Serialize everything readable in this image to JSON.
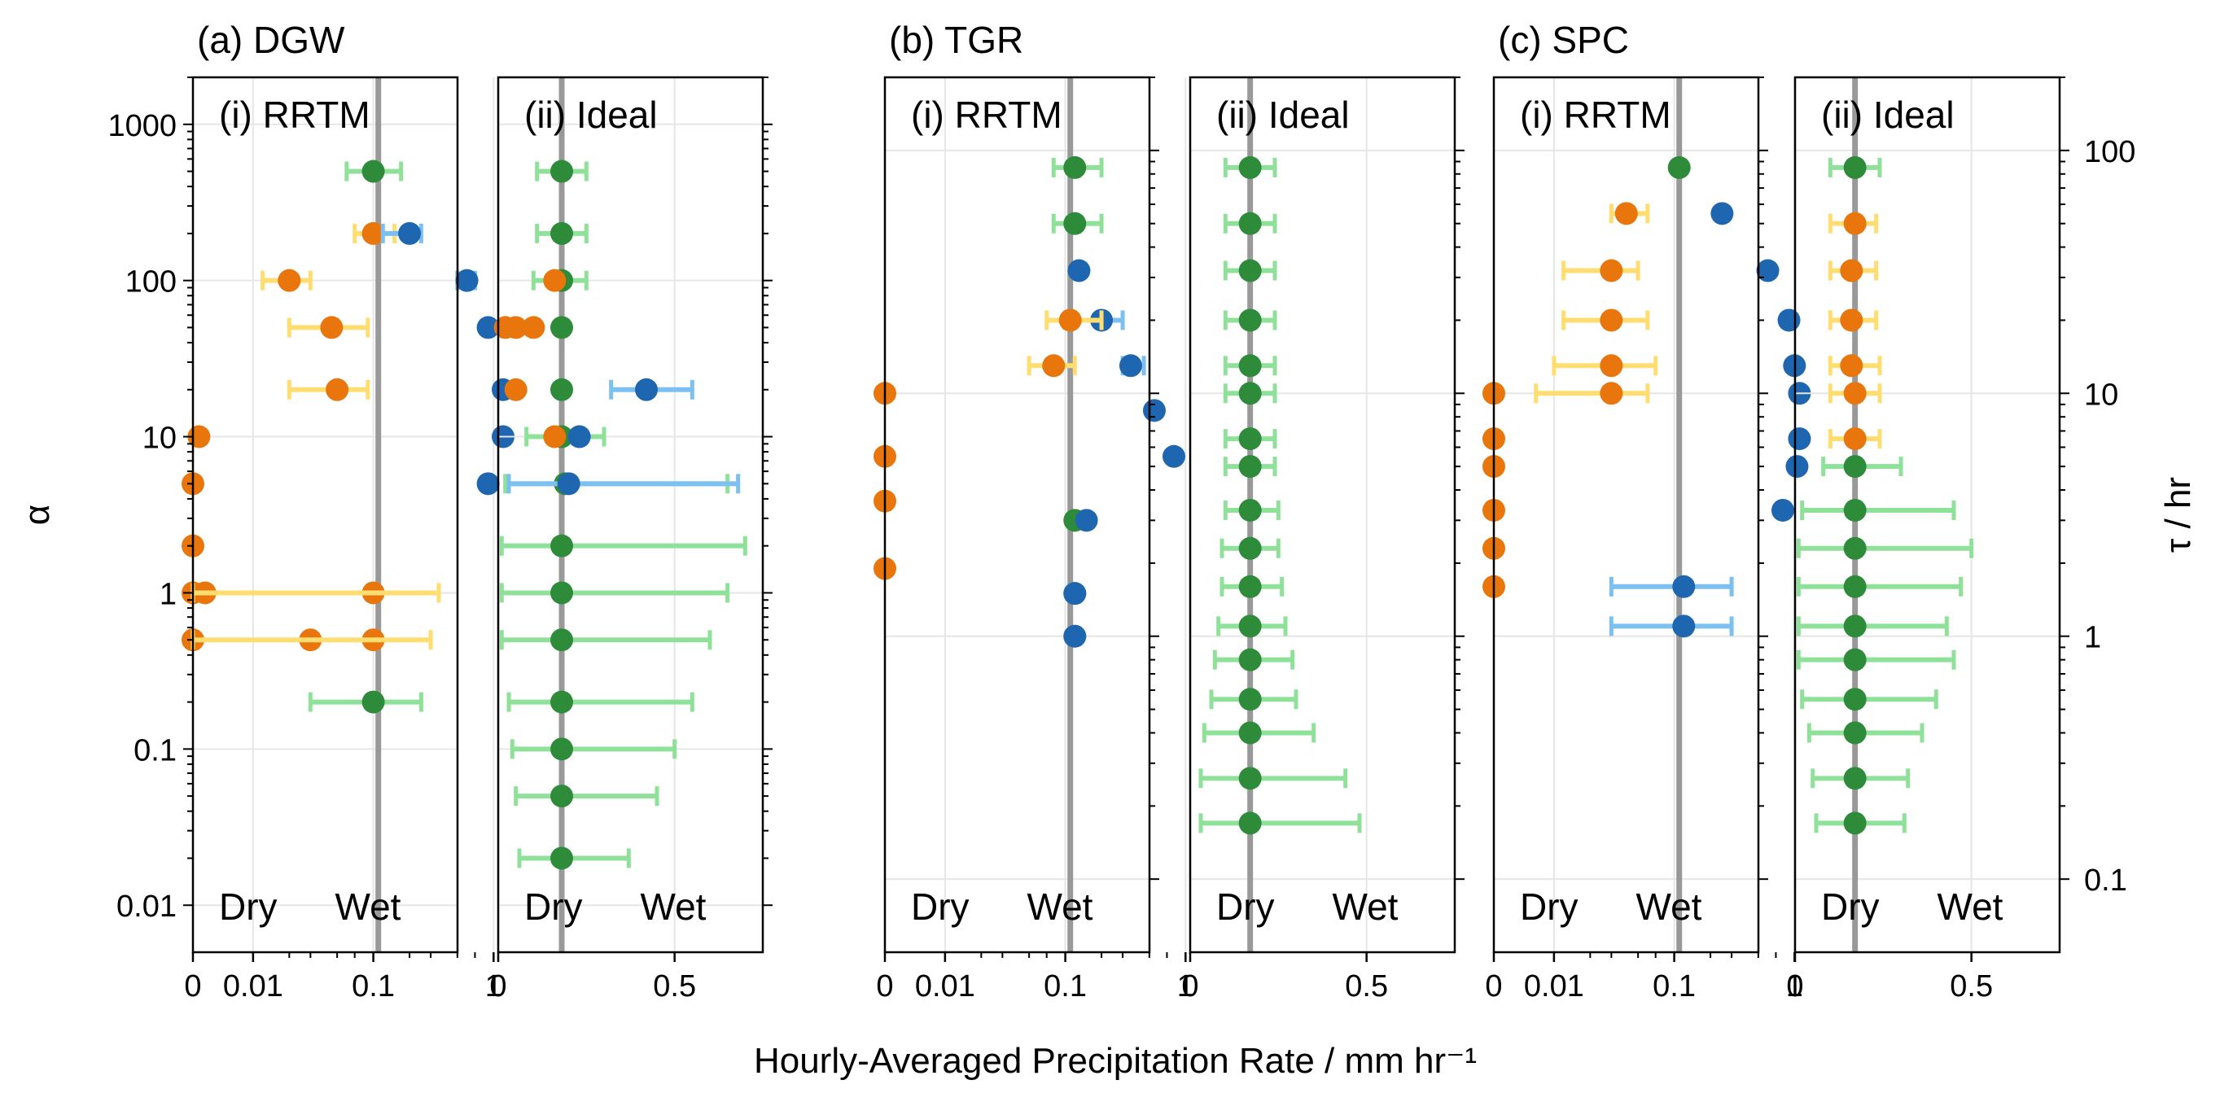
{
  "figure": {
    "xlabel": "Hourly-Averaged Precipitation Rate / mm hr⁻¹",
    "left_ylabel": "α",
    "right_ylabel": "τ / hr",
    "left_ytick_labels": [
      "1000",
      "100",
      "10",
      "1",
      "0.1",
      "0.01"
    ],
    "right_ytick_labels": [
      "100",
      "10",
      "1",
      "0.1"
    ],
    "dry_label": "Dry",
    "wet_label": "Wet",
    "colors": {
      "green": "#2e8b3a",
      "orange": "#e8760c",
      "blue": "#1f66b0",
      "light_green": "#8fe19a",
      "light_yellow": "#ffdd70",
      "light_blue": "#7cc0f2",
      "reference_line": "#999999",
      "grid": "#e6e6e6"
    }
  },
  "chart_data": [
    {
      "type": "scatter",
      "group_title": "(a) DGW",
      "title": "(i) RRTM",
      "x_scale": "symlog",
      "xticks": [
        "0",
        "0.01",
        "0.1",
        "1"
      ],
      "y_param": "alpha",
      "reference_x": 0.11,
      "series": [
        {
          "color": "orange",
          "points": [
            {
              "y": 200,
              "x": 0.1,
              "lo": 0.07,
              "hi": 0.15
            },
            {
              "y": 100,
              "x": 0.02,
              "lo": 0.012,
              "hi": 0.03
            },
            {
              "y": 50,
              "x": 0.045,
              "lo": 0.02,
              "hi": 0.09
            },
            {
              "y": 20,
              "x": 0.05,
              "lo": 0.02,
              "hi": 0.09
            },
            {
              "y": 10,
              "x": 0.001
            },
            {
              "y": 5,
              "x": 0
            },
            {
              "y": 2,
              "x": 0
            },
            {
              "y": 1,
              "x": 0.1
            },
            {
              "y": 1,
              "x": 0.002
            },
            {
              "y": 1,
              "x": 0
            },
            {
              "y": 0.5,
              "x": 0.1
            },
            {
              "y": 0.5,
              "x": 0.03
            },
            {
              "y": 0.5,
              "x": 0
            }
          ]
        },
        {
          "color": "blue",
          "points": [
            {
              "y": 200,
              "x": 0.2,
              "lo": 0.12,
              "hi": 0.25
            },
            {
              "y": 100,
              "x": 0.6,
              "lo": 0.5,
              "hi": 0.7
            },
            {
              "y": 50,
              "x": 0.9
            },
            {
              "y": 20,
              "x": 1.2
            },
            {
              "y": 10,
              "x": 1.2
            },
            {
              "y": 5,
              "x": 0.9
            }
          ]
        },
        {
          "color": "green",
          "points": [
            {
              "y": 500,
              "x": 0.1,
              "lo": 0.06,
              "hi": 0.17
            },
            {
              "y": 0.2,
              "x": 0.1,
              "lo": 0.03,
              "hi": 0.25
            }
          ]
        },
        {
          "color": "light_yellow",
          "points": [
            {
              "y": 1,
              "x": 0.1,
              "lo": 0.0,
              "hi": 0.35
            },
            {
              "y": 0.5,
              "x": 0.1,
              "lo": 0.0,
              "hi": 0.3
            }
          ]
        }
      ]
    },
    {
      "type": "scatter",
      "group_title": "",
      "title": "(ii) Ideal",
      "x_scale": "linear",
      "xticks": [
        "0",
        "0.5"
      ],
      "y_param": "alpha",
      "reference_x": 0.18,
      "series": [
        {
          "color": "green",
          "points": [
            {
              "y": 500,
              "x": 0.18,
              "lo": 0.11,
              "hi": 0.25
            },
            {
              "y": 200,
              "x": 0.18,
              "lo": 0.11,
              "hi": 0.25
            },
            {
              "y": 100,
              "x": 0.18,
              "lo": 0.1,
              "hi": 0.25
            },
            {
              "y": 50,
              "x": 0.18
            },
            {
              "y": 20,
              "x": 0.18
            },
            {
              "y": 10,
              "x": 0.18,
              "lo": 0.08,
              "hi": 0.3
            },
            {
              "y": 5,
              "x": 0.19,
              "lo": 0.02,
              "hi": 0.65
            },
            {
              "y": 2,
              "x": 0.18,
              "lo": 0.01,
              "hi": 0.7
            },
            {
              "y": 1,
              "x": 0.18,
              "lo": 0.01,
              "hi": 0.65
            },
            {
              "y": 0.5,
              "x": 0.18,
              "lo": 0.01,
              "hi": 0.6
            },
            {
              "y": 0.2,
              "x": 0.18,
              "lo": 0.03,
              "hi": 0.55
            },
            {
              "y": 0.1,
              "x": 0.18,
              "lo": 0.04,
              "hi": 0.5
            },
            {
              "y": 0.05,
              "x": 0.18,
              "lo": 0.05,
              "hi": 0.45
            },
            {
              "y": 0.02,
              "x": 0.18,
              "lo": 0.06,
              "hi": 0.37
            }
          ]
        },
        {
          "color": "orange",
          "points": [
            {
              "y": 100,
              "x": 0.16
            },
            {
              "y": 50,
              "x": 0.02
            },
            {
              "y": 50,
              "x": 0.05
            },
            {
              "y": 50,
              "x": 0.1
            },
            {
              "y": 20,
              "x": 0.05
            },
            {
              "y": 10,
              "x": 0.16
            }
          ]
        },
        {
          "color": "blue",
          "points": [
            {
              "y": 20,
              "x": 0.42,
              "lo": 0.32,
              "hi": 0.55
            },
            {
              "y": 10,
              "x": 0.23
            },
            {
              "y": 5,
              "x": 0.2,
              "lo": 0.03,
              "hi": 0.68
            }
          ]
        }
      ]
    },
    {
      "type": "scatter",
      "group_title": "(b) TGR",
      "title": "(i) RRTM",
      "x_scale": "symlog",
      "xticks": [
        "0",
        "0.01",
        "0.1",
        "1"
      ],
      "y_param": "tau",
      "reference_x": 0.11,
      "series": [
        {
          "color": "green",
          "points": [
            {
              "y": 85,
              "x": 0.12,
              "lo": 0.08,
              "hi": 0.2
            },
            {
              "y": 50,
              "x": 0.12,
              "lo": 0.08,
              "hi": 0.2
            },
            {
              "y": 3,
              "x": 0.12
            },
            {
              "y": 1.5,
              "x": 0.12
            },
            {
              "y": 1,
              "x": 0.12
            }
          ]
        },
        {
          "color": "blue",
          "points": [
            {
              "y": 32,
              "x": 0.13
            },
            {
              "y": 20,
              "x": 0.2,
              "lo": 0.1,
              "hi": 0.3
            },
            {
              "y": 13,
              "x": 0.35,
              "lo": 0.3,
              "hi": 0.45
            },
            {
              "y": 8.5,
              "x": 0.55
            },
            {
              "y": 5.5,
              "x": 0.8
            },
            {
              "y": 3,
              "x": 0.15
            },
            {
              "y": 1.5,
              "x": 0.12
            },
            {
              "y": 1,
              "x": 0.12
            }
          ]
        },
        {
          "color": "orange",
          "points": [
            {
              "y": 20,
              "x": 0.11,
              "lo": 0.07,
              "hi": 0.2
            },
            {
              "y": 13,
              "x": 0.08,
              "lo": 0.05,
              "hi": 0.12
            },
            {
              "y": 10,
              "x": 0
            },
            {
              "y": 5.5,
              "x": 0
            },
            {
              "y": 3.6,
              "x": 0
            },
            {
              "y": 1.9,
              "x": 0
            }
          ]
        }
      ]
    },
    {
      "type": "scatter",
      "group_title": "",
      "title": "(ii) Ideal",
      "x_scale": "linear",
      "xticks": [
        "0",
        "0.5"
      ],
      "y_param": "tau",
      "reference_x": 0.17,
      "series": [
        {
          "color": "green",
          "points": [
            {
              "y": 85,
              "x": 0.17,
              "lo": 0.1,
              "hi": 0.24
            },
            {
              "y": 50,
              "x": 0.17,
              "lo": 0.1,
              "hi": 0.24
            },
            {
              "y": 32,
              "x": 0.17,
              "lo": 0.1,
              "hi": 0.24
            },
            {
              "y": 20,
              "x": 0.17,
              "lo": 0.1,
              "hi": 0.24
            },
            {
              "y": 13,
              "x": 0.17,
              "lo": 0.1,
              "hi": 0.24
            },
            {
              "y": 10,
              "x": 0.17,
              "lo": 0.1,
              "hi": 0.24
            },
            {
              "y": 6.5,
              "x": 0.17,
              "lo": 0.1,
              "hi": 0.24
            },
            {
              "y": 5,
              "x": 0.17,
              "lo": 0.1,
              "hi": 0.24
            },
            {
              "y": 3.3,
              "x": 0.17,
              "lo": 0.1,
              "hi": 0.25
            },
            {
              "y": 2.3,
              "x": 0.17,
              "lo": 0.09,
              "hi": 0.25
            },
            {
              "y": 1.6,
              "x": 0.17,
              "lo": 0.09,
              "hi": 0.26
            },
            {
              "y": 1.1,
              "x": 0.17,
              "lo": 0.08,
              "hi": 0.27
            },
            {
              "y": 0.8,
              "x": 0.17,
              "lo": 0.07,
              "hi": 0.29
            },
            {
              "y": 0.55,
              "x": 0.17,
              "lo": 0.06,
              "hi": 0.3
            },
            {
              "y": 0.4,
              "x": 0.17,
              "lo": 0.04,
              "hi": 0.35
            },
            {
              "y": 0.26,
              "x": 0.17,
              "lo": 0.03,
              "hi": 0.44
            },
            {
              "y": 0.17,
              "x": 0.17,
              "lo": 0.03,
              "hi": 0.48
            }
          ]
        }
      ]
    },
    {
      "type": "scatter",
      "group_title": "(c) SPC",
      "title": "(i) RRTM",
      "x_scale": "symlog",
      "xticks": [
        "0",
        "0.01",
        "0.1",
        "1"
      ],
      "y_param": "tau",
      "reference_x": 0.11,
      "series": [
        {
          "color": "green",
          "points": [
            {
              "y": 85,
              "x": 0.11
            }
          ]
        },
        {
          "color": "orange",
          "points": [
            {
              "y": 55,
              "x": 0.04,
              "lo": 0.03,
              "hi": 0.06
            },
            {
              "y": 32,
              "x": 0.03,
              "lo": 0.012,
              "hi": 0.05
            },
            {
              "y": 20,
              "x": 0.03,
              "lo": 0.012,
              "hi": 0.06
            },
            {
              "y": 13,
              "x": 0.03,
              "lo": 0.01,
              "hi": 0.07
            },
            {
              "y": 10,
              "x": 0.03,
              "lo": 0.007,
              "hi": 0.06
            },
            {
              "y": 10,
              "x": 0
            },
            {
              "y": 6.5,
              "x": 0
            },
            {
              "y": 5,
              "x": 0
            },
            {
              "y": 3.3,
              "x": 0
            },
            {
              "y": 2.3,
              "x": 0
            },
            {
              "y": 1.6,
              "x": 0
            }
          ]
        },
        {
          "color": "blue",
          "points": [
            {
              "y": 55,
              "x": 0.25
            },
            {
              "y": 32,
              "x": 0.6
            },
            {
              "y": 20,
              "x": 0.9
            },
            {
              "y": 13,
              "x": 1.0
            },
            {
              "y": 10,
              "x": 1.1
            },
            {
              "y": 6.5,
              "x": 1.1
            },
            {
              "y": 5,
              "x": 1.05
            },
            {
              "y": 3.3,
              "x": 0.8
            },
            {
              "y": 1.6,
              "x": 0.12,
              "lo": 0.03,
              "hi": 0.3
            },
            {
              "y": 1.1,
              "x": 0.12,
              "lo": 0.03,
              "hi": 0.3
            }
          ]
        }
      ]
    },
    {
      "type": "scatter",
      "group_title": "",
      "title": "(ii) Ideal",
      "x_scale": "linear",
      "xticks": [
        "0",
        "0.5"
      ],
      "y_param": "tau",
      "reference_x": 0.17,
      "series": [
        {
          "color": "green",
          "points": [
            {
              "y": 85,
              "x": 0.17,
              "lo": 0.1,
              "hi": 0.24
            },
            {
              "y": 5,
              "x": 0.17,
              "lo": 0.08,
              "hi": 0.3
            },
            {
              "y": 3.3,
              "x": 0.17,
              "lo": 0.02,
              "hi": 0.45
            },
            {
              "y": 2.3,
              "x": 0.17,
              "lo": 0.01,
              "hi": 0.5
            },
            {
              "y": 1.6,
              "x": 0.17,
              "lo": 0.01,
              "hi": 0.47
            },
            {
              "y": 1.1,
              "x": 0.17,
              "lo": 0.01,
              "hi": 0.43
            },
            {
              "y": 0.8,
              "x": 0.17,
              "lo": 0.01,
              "hi": 0.45
            },
            {
              "y": 0.55,
              "x": 0.17,
              "lo": 0.02,
              "hi": 0.4
            },
            {
              "y": 0.4,
              "x": 0.17,
              "lo": 0.04,
              "hi": 0.36
            },
            {
              "y": 0.26,
              "x": 0.17,
              "lo": 0.05,
              "hi": 0.32
            },
            {
              "y": 0.17,
              "x": 0.17,
              "lo": 0.06,
              "hi": 0.31
            }
          ]
        },
        {
          "color": "orange",
          "points": [
            {
              "y": 50,
              "x": 0.17,
              "lo": 0.1,
              "hi": 0.23
            },
            {
              "y": 32,
              "x": 0.16,
              "lo": 0.1,
              "hi": 0.23
            },
            {
              "y": 20,
              "x": 0.16,
              "lo": 0.1,
              "hi": 0.23
            },
            {
              "y": 13,
              "x": 0.16,
              "lo": 0.1,
              "hi": 0.24
            },
            {
              "y": 10,
              "x": 0.17,
              "lo": 0.1,
              "hi": 0.24
            },
            {
              "y": 6.5,
              "x": 0.17,
              "lo": 0.1,
              "hi": 0.24
            }
          ]
        }
      ]
    }
  ]
}
